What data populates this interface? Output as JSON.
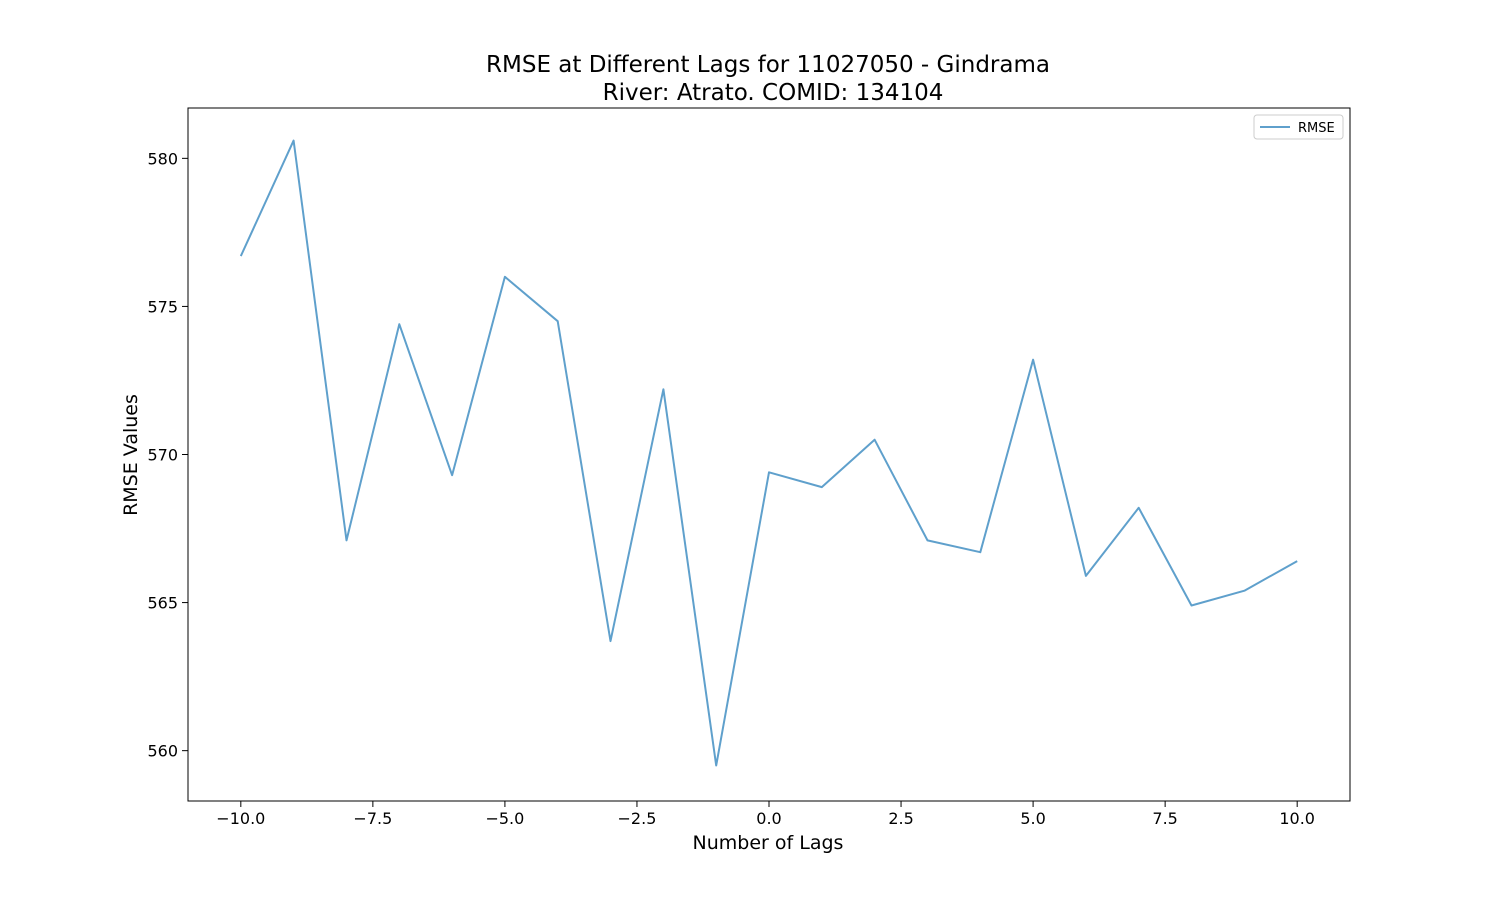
{
  "chart_data": {
    "type": "line",
    "title": "RMSE at Different Lags for 11027050 - Gindrama",
    "subtitle": "River: Atrato. COMID: 134104",
    "xlabel": "Number of Lags",
    "ylabel": "RMSE Values",
    "xlim": [
      -11.0,
      11.0
    ],
    "ylim": [
      558.3,
      581.7
    ],
    "xticks": [
      -10.0,
      -7.5,
      -5.0,
      -2.5,
      0.0,
      2.5,
      5.0,
      7.5,
      10.0
    ],
    "xtick_labels": [
      "−10.0",
      "−7.5",
      "−5.0",
      "−2.5",
      "0.0",
      "2.5",
      "5.0",
      "7.5",
      "10.0"
    ],
    "yticks": [
      560,
      565,
      570,
      575,
      580
    ],
    "ytick_labels": [
      "560",
      "565",
      "570",
      "575",
      "580"
    ],
    "grid": false,
    "legend_position": "top-right",
    "series": [
      {
        "name": "RMSE",
        "color": "#5fa0cc",
        "x": [
          -10,
          -9,
          -8,
          -7,
          -6,
          -5,
          -4,
          -3,
          -2,
          -1,
          0,
          1,
          2,
          3,
          4,
          5,
          6,
          7,
          8,
          9,
          10
        ],
        "y": [
          576.7,
          580.6,
          567.1,
          574.4,
          569.3,
          576.0,
          574.5,
          563.7,
          572.2,
          559.5,
          569.4,
          568.9,
          570.5,
          567.1,
          566.7,
          573.2,
          565.9,
          568.2,
          564.9,
          565.4,
          566.4
        ]
      }
    ]
  }
}
